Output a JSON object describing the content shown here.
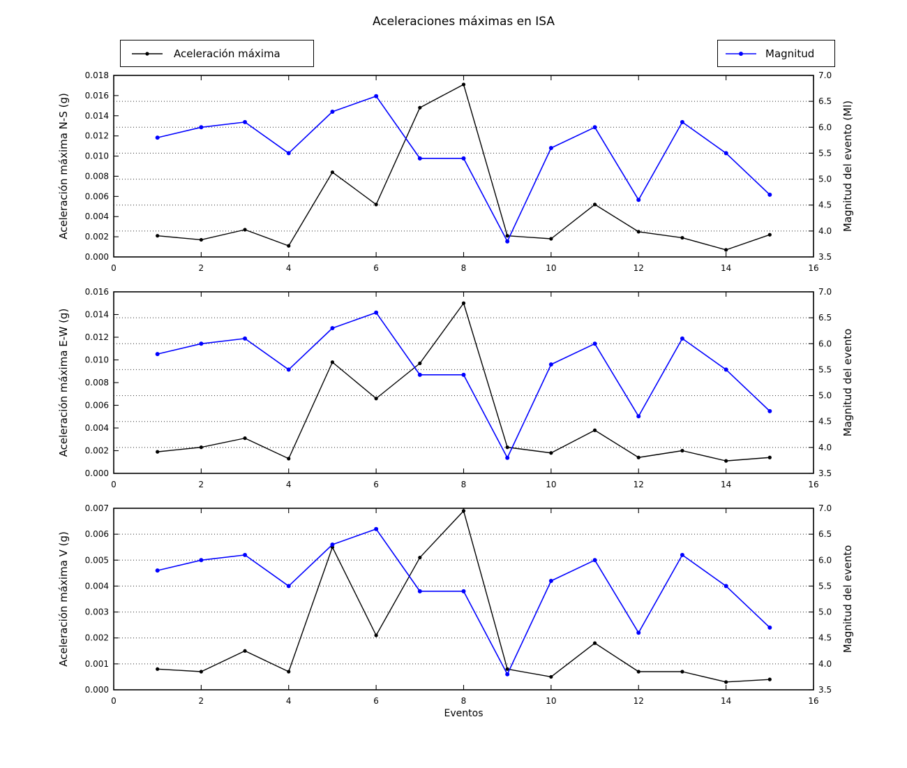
{
  "title": "Aceleraciones máximas en ISA",
  "xlabel": "Eventos",
  "legend": [
    {
      "label": "Aceleración máxima",
      "color": "#000000"
    },
    {
      "label": "Magnitud",
      "color": "#0000ff"
    }
  ],
  "colors": {
    "acceleration_series": "#000000",
    "magnitude_series": "#0000ff",
    "grid": "#000000",
    "frame": "#000000",
    "background": "#ffffff"
  },
  "chart_data": [
    {
      "type": "line",
      "ylabel_left": "Aceleración máxima N-S (g)",
      "ylabel_right": "Magnitud del evento (Ml)",
      "xlim": [
        0,
        16
      ],
      "ylim_left": [
        0.0,
        0.018
      ],
      "ylim_right": [
        3.5,
        7.0
      ],
      "x_ticks": [
        "0",
        "2",
        "4",
        "6",
        "8",
        "10",
        "12",
        "14",
        "16"
      ],
      "y_ticks_left": [
        "0.000",
        "0.002",
        "0.004",
        "0.006",
        "0.008",
        "0.010",
        "0.012",
        "0.014",
        "0.016",
        "0.018"
      ],
      "y_ticks_right": [
        "3.5",
        "4.0",
        "4.5",
        "5.0",
        "5.5",
        "6.0",
        "6.5",
        "7.0"
      ],
      "grid": "dotted-horizontal-at-right-ticks",
      "x": [
        1,
        2,
        3,
        4,
        5,
        6,
        7,
        8,
        9,
        10,
        11,
        12,
        13,
        14,
        15
      ],
      "series": [
        {
          "name": "Aceleración máxima",
          "axis": "left",
          "color": "#000000",
          "values": [
            0.0021,
            0.0017,
            0.0027,
            0.0011,
            0.0084,
            0.0052,
            0.0148,
            0.0171,
            0.0021,
            0.0018,
            0.0052,
            0.0025,
            0.0019,
            0.0007,
            0.0022
          ]
        },
        {
          "name": "Magnitud",
          "axis": "right",
          "color": "#0000ff",
          "values": [
            5.8,
            6.0,
            6.1,
            5.5,
            6.3,
            6.6,
            5.4,
            5.4,
            3.8,
            5.6,
            6.0,
            4.6,
            6.1,
            5.5,
            4.7
          ]
        }
      ]
    },
    {
      "type": "line",
      "ylabel_left": "Aceleración máxima E-W (g)",
      "ylabel_right": "Magnitud del evento",
      "xlim": [
        0,
        16
      ],
      "ylim_left": [
        0.0,
        0.016
      ],
      "ylim_right": [
        3.5,
        7.0
      ],
      "x_ticks": [
        "0",
        "2",
        "4",
        "6",
        "8",
        "10",
        "12",
        "14",
        "16"
      ],
      "y_ticks_left": [
        "0.000",
        "0.002",
        "0.004",
        "0.006",
        "0.008",
        "0.010",
        "0.012",
        "0.014",
        "0.016"
      ],
      "y_ticks_right": [
        "3.5",
        "4.0",
        "4.5",
        "5.0",
        "5.5",
        "6.0",
        "6.5",
        "7.0"
      ],
      "grid": "dotted-horizontal-at-right-ticks",
      "x": [
        1,
        2,
        3,
        4,
        5,
        6,
        7,
        8,
        9,
        10,
        11,
        12,
        13,
        14,
        15
      ],
      "series": [
        {
          "name": "Aceleración máxima",
          "axis": "left",
          "color": "#000000",
          "values": [
            0.0019,
            0.0023,
            0.0031,
            0.0013,
            0.0098,
            0.0066,
            0.0097,
            0.015,
            0.0023,
            0.0018,
            0.0038,
            0.0014,
            0.002,
            0.0011,
            0.0014
          ]
        },
        {
          "name": "Magnitud",
          "axis": "right",
          "color": "#0000ff",
          "values": [
            5.8,
            6.0,
            6.1,
            5.5,
            6.3,
            6.6,
            5.4,
            5.4,
            3.8,
            5.6,
            6.0,
            4.6,
            6.1,
            5.5,
            4.7
          ]
        }
      ]
    },
    {
      "type": "line",
      "ylabel_left": "Aceleración máxima V (g)",
      "ylabel_right": "Magnitud del evento",
      "xlim": [
        0,
        16
      ],
      "ylim_left": [
        0.0,
        0.007
      ],
      "ylim_right": [
        3.5,
        7.0
      ],
      "x_ticks": [
        "0",
        "2",
        "4",
        "6",
        "8",
        "10",
        "12",
        "14",
        "16"
      ],
      "y_ticks_left": [
        "0.000",
        "0.001",
        "0.002",
        "0.003",
        "0.004",
        "0.005",
        "0.006",
        "0.007"
      ],
      "y_ticks_right": [
        "3.5",
        "4.0",
        "4.5",
        "5.0",
        "5.5",
        "6.0",
        "6.5",
        "7.0"
      ],
      "grid": "dotted-horizontal-at-right-ticks",
      "x": [
        1,
        2,
        3,
        4,
        5,
        6,
        7,
        8,
        9,
        10,
        11,
        12,
        13,
        14,
        15
      ],
      "series": [
        {
          "name": "Aceleración máxima",
          "axis": "left",
          "color": "#000000",
          "values": [
            0.0008,
            0.0007,
            0.0015,
            0.0007,
            0.0055,
            0.0021,
            0.0051,
            0.0069,
            0.0008,
            0.0005,
            0.0018,
            0.0007,
            0.0007,
            0.0003,
            0.0004
          ]
        },
        {
          "name": "Magnitud",
          "axis": "right",
          "color": "#0000ff",
          "values": [
            5.8,
            6.0,
            6.1,
            5.5,
            6.3,
            6.6,
            5.4,
            5.4,
            3.8,
            5.6,
            6.0,
            4.6,
            6.1,
            5.5,
            4.7
          ]
        }
      ]
    }
  ]
}
